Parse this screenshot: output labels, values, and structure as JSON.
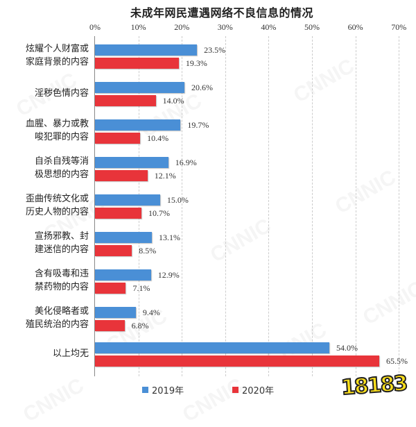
{
  "chart_data": {
    "type": "bar",
    "orientation": "horizontal",
    "title": "未成年网民遭遇网络不良信息的情况",
    "xlabel": "",
    "ylabel": "",
    "xlim": [
      0,
      70
    ],
    "xticks": [
      "0%",
      "10%",
      "20%",
      "30%",
      "40%",
      "50%",
      "60%",
      "70%"
    ],
    "grid": true,
    "legend_position": "bottom",
    "categories": [
      "炫耀个人财富或家庭背景的内容",
      "淫秽色情内容",
      "血腥、暴力或教唆犯罪的内容",
      "自杀自残等消极思想的内容",
      "歪曲传统文化或历史人物的内容",
      "宣扬邪教、封建迷信的内容",
      "含有吸毒和违禁药物的内容",
      "美化侵略者或殖民统治的内容",
      "以上均无"
    ],
    "series": [
      {
        "name": "2019年",
        "color": "#4a8fd6",
        "values": [
          23.5,
          20.6,
          19.7,
          16.9,
          15.0,
          13.1,
          12.9,
          9.4,
          54.0
        ]
      },
      {
        "name": "2020年",
        "color": "#e8343a",
        "values": [
          19.3,
          14.0,
          10.4,
          12.1,
          10.7,
          8.5,
          7.1,
          6.8,
          65.5
        ]
      }
    ]
  },
  "labels": {
    "cat_lines": [
      [
        "炫耀个人财富或",
        "家庭背景的内容"
      ],
      [
        "淫秽色情内容"
      ],
      [
        "血腥、暴力或教",
        "唆犯罪的内容"
      ],
      [
        "自杀自残等消",
        "极思想的内容"
      ],
      [
        "歪曲传统文化或",
        "历史人物的内容"
      ],
      [
        "宣扬邪教、封",
        "建迷信的内容"
      ],
      [
        "含有吸毒和违",
        "禁药物的内容"
      ],
      [
        "美化侵略者或",
        "殖民统治的内容"
      ],
      [
        "以上均无"
      ]
    ],
    "v2019": [
      "23.5%",
      "20.6%",
      "19.7%",
      "16.9%",
      "15.0%",
      "13.1%",
      "12.9%",
      "9.4%",
      "54.0%"
    ],
    "v2020": [
      "19.3%",
      "14.0%",
      "10.4%",
      "12.1%",
      "10.7%",
      "8.5%",
      "7.1%",
      "6.8%",
      "65.5%"
    ]
  },
  "watermark": "CNNIC",
  "logo": "18183"
}
